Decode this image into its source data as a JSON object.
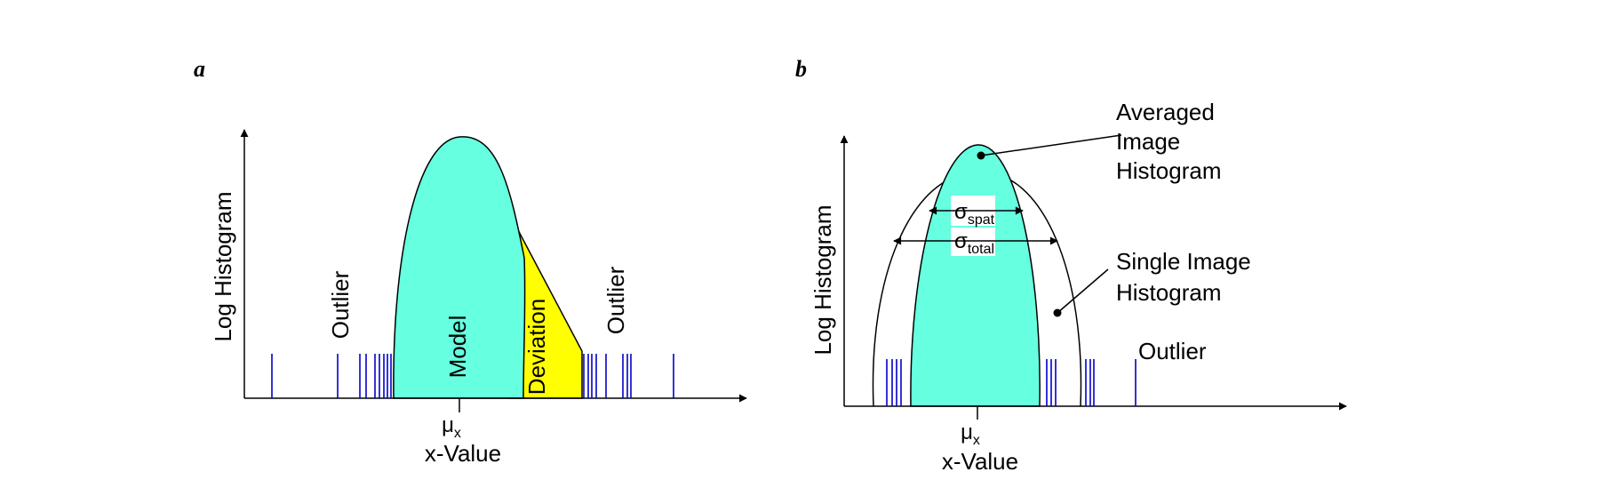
{
  "colors": {
    "model_fill": "#66ffe0",
    "deviation_fill": "#ffff00",
    "tick_color": "#0000cc",
    "line_color": "#000000"
  },
  "panel_a": {
    "panel_label": "a",
    "y_axis_label": "Log Histogram",
    "x_axis_label": "x-Value",
    "mu_symbol": "μ",
    "mu_subscript": "x",
    "model_label": "Model",
    "deviation_label": "Deviation",
    "outlier_left_label": "Outlier",
    "outlier_right_label": "Outlier"
  },
  "panel_b": {
    "panel_label": "b",
    "y_axis_label": "Log Histogram",
    "x_axis_label": "x-Value",
    "mu_symbol": "μ",
    "mu_subscript": "x",
    "averaged_line1": "Averaged",
    "averaged_line2": "Image",
    "averaged_line3": "Histogram",
    "single_line1": "Single Image",
    "single_line2": "Histogram",
    "outlier_label": "Outlier",
    "sigma_symbol": "σ",
    "sigma_spat_subscript": "spat",
    "sigma_total_subscript": "total"
  }
}
